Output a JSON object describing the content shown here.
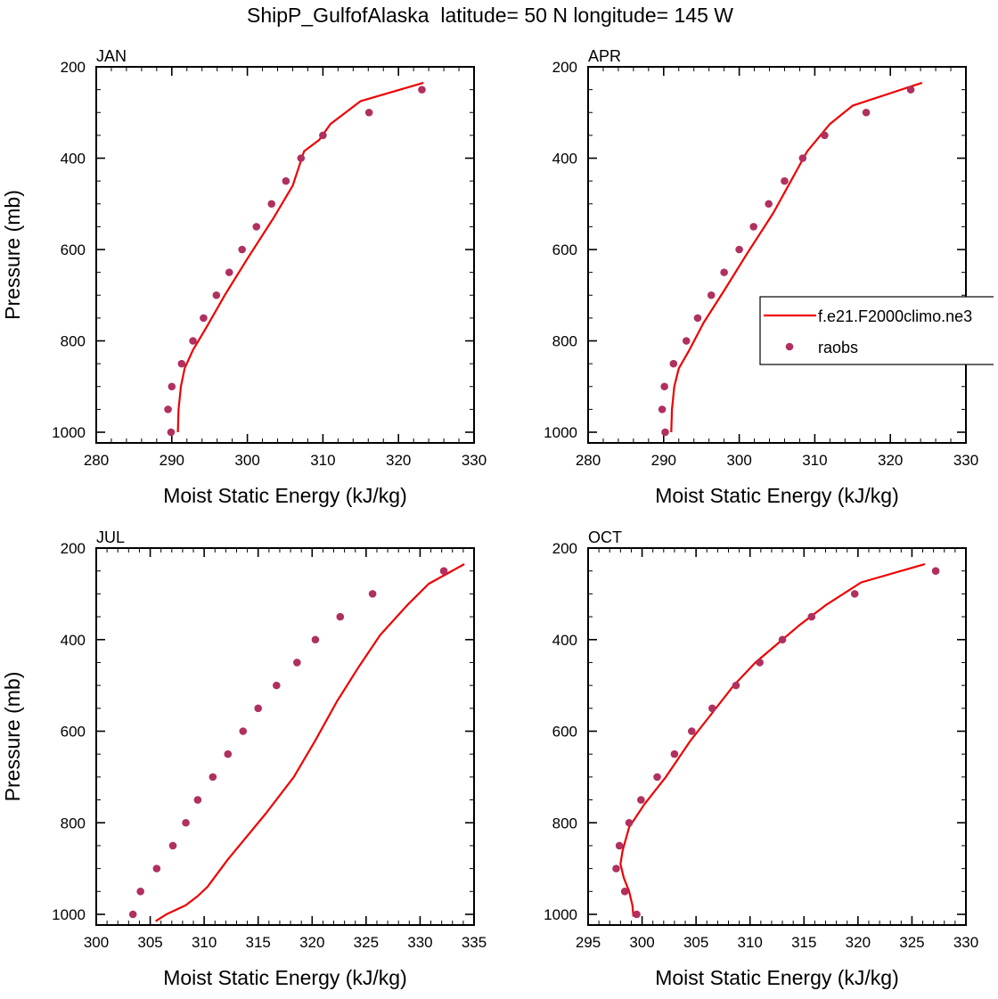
{
  "title": "ShipP_GulfofAlaska  latitude= 50 N longitude= 145 W",
  "colors": {
    "model_line": "#ee0000",
    "obs_marker": "#b03060",
    "axis": "#000000"
  },
  "legend": {
    "model_label": "f.e21.F2000climo.ne3",
    "obs_label": "raobs"
  },
  "chart_data": [
    {
      "type": "line",
      "panel_label": "JAN",
      "xlabel": "Moist Static Energy (kJ/kg)",
      "ylabel": "Pressure (mb)",
      "xlim": [
        280,
        330
      ],
      "ylim": [
        1000,
        200
      ],
      "xticks": [
        280,
        290,
        300,
        310,
        320,
        330
      ],
      "yticks": [
        200,
        400,
        600,
        800,
        1000
      ],
      "series": [
        {
          "name": "f.e21.F2000climo.ne3",
          "kind": "line",
          "x": [
            290.8,
            290.9,
            291.2,
            291.7,
            292.8,
            294.6,
            297.0,
            300.0,
            303.5,
            306.0,
            307.5,
            309.5,
            311.0,
            315.0,
            323.3
          ],
          "y": [
            1000,
            950,
            900,
            860,
            820,
            770,
            700,
            620,
            530,
            460,
            385,
            360,
            325,
            275,
            235
          ]
        },
        {
          "name": "raobs",
          "kind": "scatter",
          "x": [
            289.9,
            289.5,
            290.0,
            291.3,
            292.8,
            294.2,
            295.9,
            297.6,
            299.3,
            301.2,
            303.2,
            305.1,
            307.1,
            310.0,
            316.1,
            323.1
          ],
          "y": [
            1000,
            950,
            900,
            850,
            800,
            750,
            700,
            650,
            600,
            550,
            500,
            450,
            400,
            350,
            300,
            250
          ]
        }
      ]
    },
    {
      "type": "line",
      "panel_label": "APR",
      "xlabel": "Moist Static Energy (kJ/kg)",
      "ylabel": "",
      "xlim": [
        280,
        330
      ],
      "ylim": [
        1000,
        200
      ],
      "xticks": [
        280,
        290,
        300,
        310,
        320,
        330
      ],
      "yticks": [
        200,
        400,
        600,
        800,
        1000
      ],
      "series": [
        {
          "name": "f.e21.F2000climo.ne3",
          "kind": "line",
          "x": [
            291.0,
            291.1,
            291.4,
            292.0,
            293.4,
            295.3,
            298.0,
            301.0,
            304.5,
            307.5,
            309.0,
            312.0,
            315.0,
            324.2
          ],
          "y": [
            1000,
            950,
            900,
            860,
            820,
            760,
            690,
            610,
            520,
            430,
            385,
            325,
            285,
            235
          ]
        },
        {
          "name": "raobs",
          "kind": "scatter",
          "x": [
            290.2,
            289.8,
            290.1,
            291.3,
            293.0,
            294.5,
            296.3,
            298.0,
            300.0,
            301.9,
            303.9,
            306.0,
            308.4,
            311.3,
            316.8,
            322.7
          ],
          "y": [
            1000,
            950,
            900,
            850,
            800,
            750,
            700,
            650,
            600,
            550,
            500,
            450,
            400,
            350,
            300,
            250
          ]
        }
      ]
    },
    {
      "type": "line",
      "panel_label": "JUL",
      "xlabel": "Moist Static Energy (kJ/kg)",
      "ylabel": "Pressure (mb)",
      "xlim": [
        300,
        335
      ],
      "ylim": [
        1000,
        200
      ],
      "xticks": [
        300,
        305,
        310,
        315,
        320,
        325,
        330,
        335
      ],
      "yticks": [
        200,
        400,
        600,
        800,
        1000
      ],
      "series": [
        {
          "name": "f.e21.F2000climo.ne3",
          "kind": "line",
          "x": [
            305.5,
            306.5,
            308.3,
            309.4,
            310.3,
            312.2,
            315.7,
            318.3,
            320.3,
            322.3,
            324.3,
            326.3,
            328.8,
            330.8,
            334.1
          ],
          "y": [
            1015,
            1000,
            980,
            960,
            940,
            880,
            780,
            700,
            620,
            535,
            460,
            390,
            325,
            278,
            235
          ]
        },
        {
          "name": "raobs",
          "kind": "scatter",
          "x": [
            303.4,
            304.1,
            305.6,
            307.1,
            308.3,
            309.4,
            310.8,
            312.2,
            313.6,
            315.0,
            316.7,
            318.6,
            320.3,
            322.6,
            325.6,
            332.2
          ],
          "y": [
            1000,
            950,
            900,
            850,
            800,
            750,
            700,
            650,
            600,
            550,
            500,
            450,
            400,
            350,
            300,
            250
          ]
        }
      ]
    },
    {
      "type": "line",
      "panel_label": "OCT",
      "xlabel": "Moist Static Energy (kJ/kg)",
      "ylabel": "",
      "xlim": [
        295,
        330
      ],
      "ylim": [
        1000,
        200
      ],
      "xticks": [
        295,
        300,
        305,
        310,
        315,
        320,
        325,
        330
      ],
      "yticks": [
        200,
        400,
        600,
        800,
        1000
      ],
      "series": [
        {
          "name": "f.e21.F2000climo.ne3",
          "kind": "line",
          "x": [
            299.2,
            299.1,
            298.8,
            298.3,
            298.0,
            298.2,
            298.8,
            300.2,
            302.2,
            304.5,
            306.5,
            308.5,
            310.5,
            312.5,
            314.5,
            317.0,
            320.3,
            326.2
          ],
          "y": [
            1005,
            980,
            950,
            920,
            890,
            860,
            810,
            760,
            700,
            620,
            560,
            500,
            450,
            410,
            370,
            325,
            275,
            235
          ]
        },
        {
          "name": "raobs",
          "kind": "scatter",
          "x": [
            299.5,
            298.4,
            297.6,
            297.9,
            298.8,
            299.9,
            301.4,
            303.0,
            304.6,
            306.5,
            308.7,
            310.9,
            313.0,
            315.7,
            319.7,
            327.2
          ],
          "y": [
            1000,
            950,
            900,
            850,
            800,
            750,
            700,
            650,
            600,
            550,
            500,
            450,
            400,
            350,
            300,
            250
          ]
        }
      ]
    }
  ]
}
